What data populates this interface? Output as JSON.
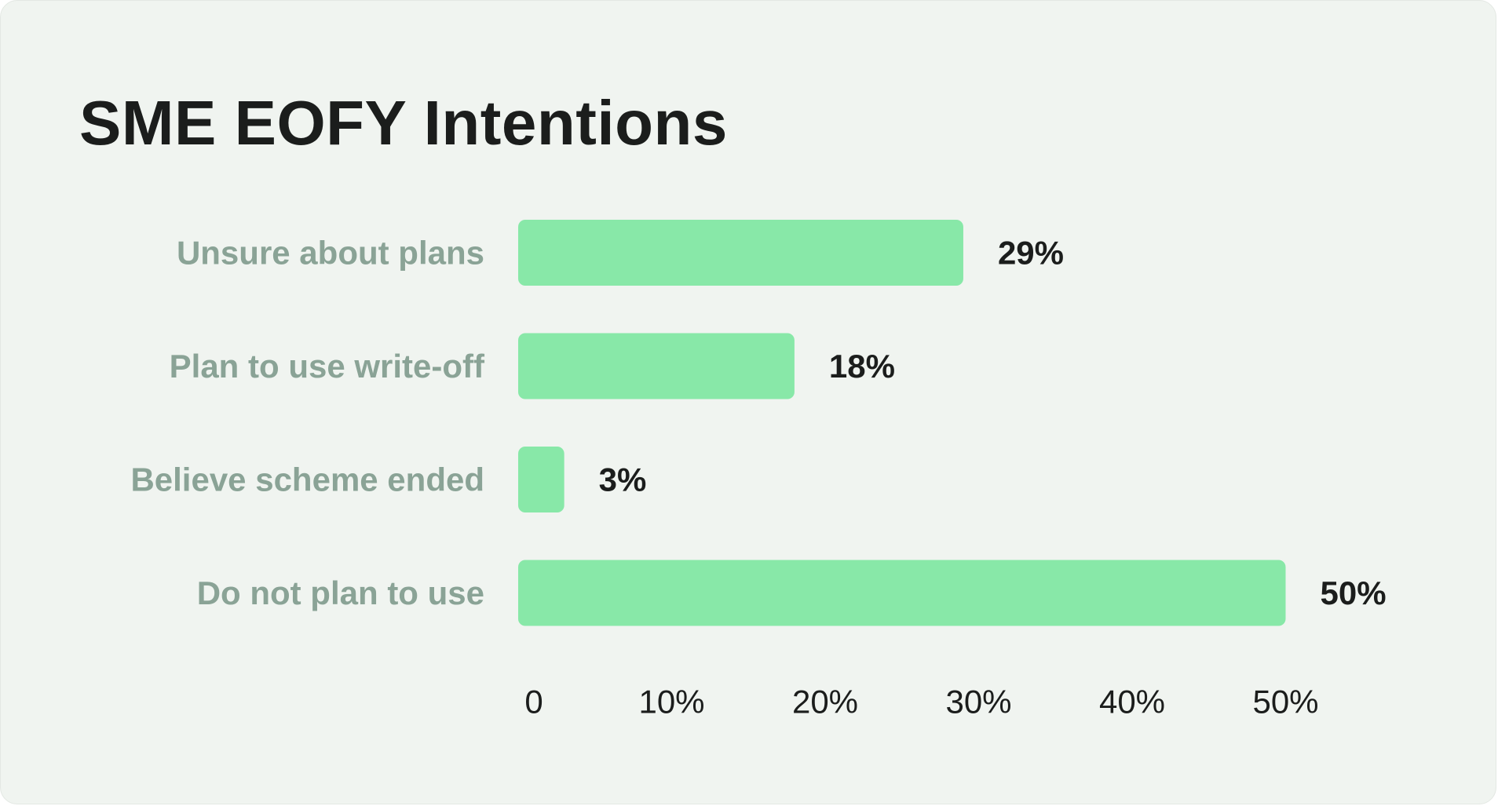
{
  "title": "SME EOFY Intentions",
  "colors": {
    "background": "#f0f4f0",
    "bar": "#88e8a8",
    "category_text": "#8aa396",
    "value_text": "#1b1d1c"
  },
  "chart_data": {
    "type": "bar",
    "orientation": "horizontal",
    "title": "SME EOFY Intentions",
    "xlabel": "",
    "ylabel": "",
    "categories": [
      "Unsure about plans",
      "Plan to use write-off",
      "Believe scheme ended",
      "Do not plan to use"
    ],
    "values": [
      29,
      18,
      3,
      50
    ],
    "value_labels": [
      "29%",
      "18%",
      "3%",
      "50%"
    ],
    "xlim": [
      0,
      50
    ],
    "x_ticks": [
      0,
      10,
      20,
      30,
      40,
      50
    ],
    "x_tick_labels": [
      "0",
      "10%",
      "20%",
      "30%",
      "40%",
      "50%"
    ],
    "grid": false,
    "legend": "none"
  }
}
